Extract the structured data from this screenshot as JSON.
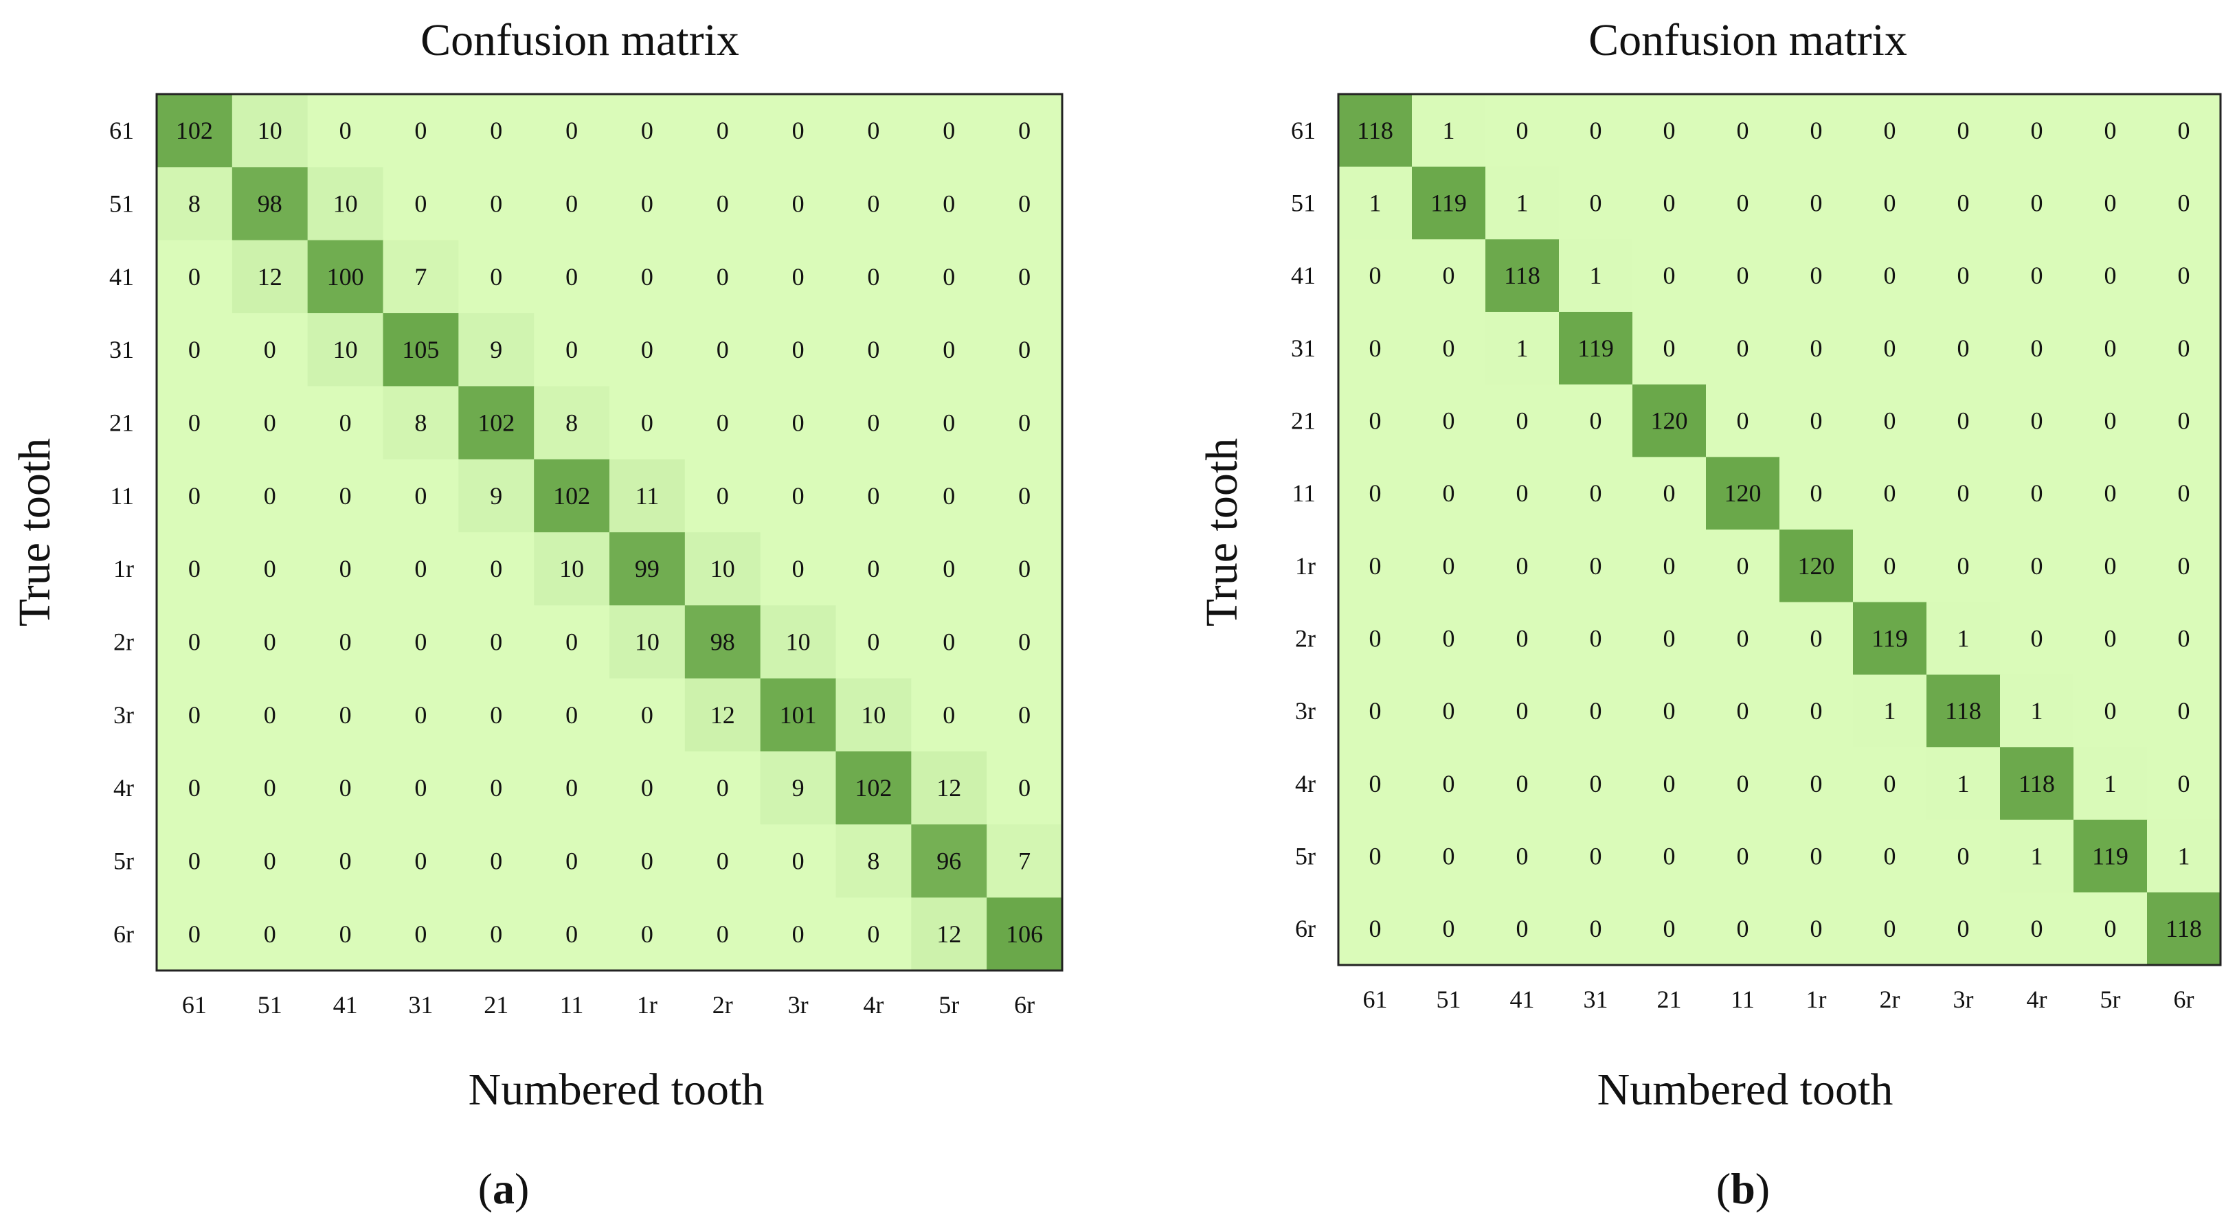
{
  "chart_data": [
    {
      "type": "heatmap",
      "panel_label": "a",
      "title": "Confusion matrix",
      "xlabel": "Numbered tooth",
      "ylabel": "True tooth",
      "x_categories": [
        "61",
        "51",
        "41",
        "31",
        "21",
        "11",
        "1r",
        "2r",
        "3r",
        "4r",
        "5r",
        "6r"
      ],
      "y_categories": [
        "61",
        "51",
        "41",
        "31",
        "21",
        "11",
        "1r",
        "2r",
        "3r",
        "4r",
        "5r",
        "6r"
      ],
      "color_range": [
        "#dafbb9",
        "#6aa84a"
      ],
      "matrix": [
        [
          102,
          10,
          0,
          0,
          0,
          0,
          0,
          0,
          0,
          0,
          0,
          0
        ],
        [
          8,
          98,
          10,
          0,
          0,
          0,
          0,
          0,
          0,
          0,
          0,
          0
        ],
        [
          0,
          12,
          100,
          7,
          0,
          0,
          0,
          0,
          0,
          0,
          0,
          0
        ],
        [
          0,
          0,
          10,
          105,
          9,
          0,
          0,
          0,
          0,
          0,
          0,
          0
        ],
        [
          0,
          0,
          0,
          8,
          102,
          8,
          0,
          0,
          0,
          0,
          0,
          0
        ],
        [
          0,
          0,
          0,
          0,
          9,
          102,
          11,
          0,
          0,
          0,
          0,
          0
        ],
        [
          0,
          0,
          0,
          0,
          0,
          10,
          99,
          10,
          0,
          0,
          0,
          0
        ],
        [
          0,
          0,
          0,
          0,
          0,
          0,
          10,
          98,
          10,
          0,
          0,
          0
        ],
        [
          0,
          0,
          0,
          0,
          0,
          0,
          0,
          12,
          101,
          10,
          0,
          0
        ],
        [
          0,
          0,
          0,
          0,
          0,
          0,
          0,
          0,
          9,
          102,
          12,
          0
        ],
        [
          0,
          0,
          0,
          0,
          0,
          0,
          0,
          0,
          0,
          8,
          96,
          7
        ],
        [
          0,
          0,
          0,
          0,
          0,
          0,
          0,
          0,
          0,
          0,
          12,
          106
        ]
      ]
    },
    {
      "type": "heatmap",
      "panel_label": "b",
      "title": "Confusion matrix",
      "xlabel": "Numbered tooth",
      "ylabel": "True tooth",
      "x_categories": [
        "61",
        "51",
        "41",
        "31",
        "21",
        "11",
        "1r",
        "2r",
        "3r",
        "4r",
        "5r",
        "6r"
      ],
      "y_categories": [
        "61",
        "51",
        "41",
        "31",
        "21",
        "11",
        "1r",
        "2r",
        "3r",
        "4r",
        "5r",
        "6r"
      ],
      "color_range": [
        "#dafbb9",
        "#6aa84a"
      ],
      "matrix": [
        [
          118,
          1,
          0,
          0,
          0,
          0,
          0,
          0,
          0,
          0,
          0,
          0
        ],
        [
          1,
          119,
          1,
          0,
          0,
          0,
          0,
          0,
          0,
          0,
          0,
          0
        ],
        [
          0,
          0,
          118,
          1,
          0,
          0,
          0,
          0,
          0,
          0,
          0,
          0
        ],
        [
          0,
          0,
          1,
          119,
          0,
          0,
          0,
          0,
          0,
          0,
          0,
          0
        ],
        [
          0,
          0,
          0,
          0,
          120,
          0,
          0,
          0,
          0,
          0,
          0,
          0
        ],
        [
          0,
          0,
          0,
          0,
          0,
          120,
          0,
          0,
          0,
          0,
          0,
          0
        ],
        [
          0,
          0,
          0,
          0,
          0,
          0,
          120,
          0,
          0,
          0,
          0,
          0
        ],
        [
          0,
          0,
          0,
          0,
          0,
          0,
          0,
          119,
          1,
          0,
          0,
          0
        ],
        [
          0,
          0,
          0,
          0,
          0,
          0,
          0,
          1,
          118,
          1,
          0,
          0
        ],
        [
          0,
          0,
          0,
          0,
          0,
          0,
          0,
          0,
          1,
          118,
          1,
          0
        ],
        [
          0,
          0,
          0,
          0,
          0,
          0,
          0,
          0,
          0,
          1,
          119,
          1
        ],
        [
          0,
          0,
          0,
          0,
          0,
          0,
          0,
          0,
          0,
          0,
          0,
          118
        ]
      ]
    }
  ]
}
